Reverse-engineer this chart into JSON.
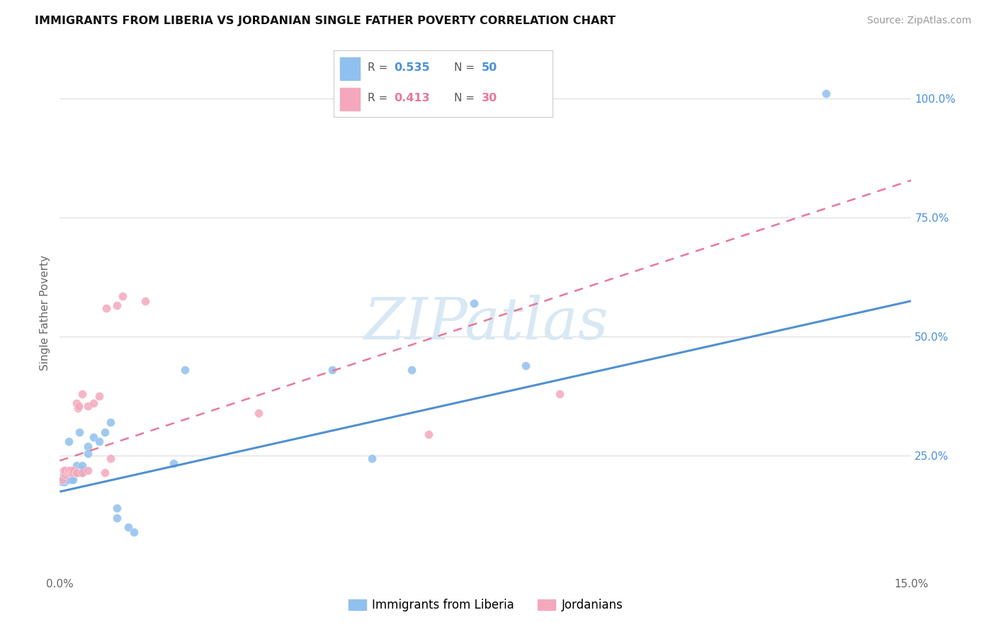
{
  "title": "IMMIGRANTS FROM LIBERIA VS JORDANIAN SINGLE FATHER POVERTY CORRELATION CHART",
  "source": "Source: ZipAtlas.com",
  "ylabel": "Single Father Poverty",
  "r1": "0.535",
  "n1": "50",
  "r2": "0.413",
  "n2": "30",
  "legend_label1": "Immigrants from Liberia",
  "legend_label2": "Jordanians",
  "color_blue": "#90C0EE",
  "color_pink": "#F5A8BC",
  "color_blue_line": "#5090D0",
  "color_pink_line": "#E87898",
  "color_blue_text": "#4A90D9",
  "color_pink_text": "#E87898",
  "color_grid": "#DDDDDD",
  "blue_line_x": [
    0.0,
    0.15
  ],
  "blue_line_y": [
    0.175,
    0.575
  ],
  "pink_line_x": [
    0.0,
    0.088
  ],
  "pink_line_y": [
    0.24,
    0.585
  ],
  "blue_x": [
    0.0004,
    0.0006,
    0.0007,
    0.0008,
    0.0009,
    0.001,
    0.001,
    0.001,
    0.0012,
    0.0013,
    0.0014,
    0.0015,
    0.0016,
    0.0017,
    0.0018,
    0.002,
    0.002,
    0.002,
    0.002,
    0.0022,
    0.0023,
    0.0025,
    0.0027,
    0.003,
    0.003,
    0.003,
    0.0032,
    0.0033,
    0.0035,
    0.004,
    0.004,
    0.004,
    0.005,
    0.005,
    0.006,
    0.007,
    0.008,
    0.009,
    0.01,
    0.01,
    0.012,
    0.013,
    0.02,
    0.022,
    0.048,
    0.055,
    0.062,
    0.073,
    0.082,
    0.135
  ],
  "blue_y": [
    0.195,
    0.2,
    0.21,
    0.195,
    0.205,
    0.2,
    0.215,
    0.22,
    0.2,
    0.215,
    0.215,
    0.2,
    0.28,
    0.22,
    0.215,
    0.215,
    0.215,
    0.22,
    0.2,
    0.22,
    0.2,
    0.22,
    0.215,
    0.215,
    0.22,
    0.23,
    0.215,
    0.215,
    0.3,
    0.215,
    0.22,
    0.23,
    0.27,
    0.255,
    0.29,
    0.28,
    0.3,
    0.32,
    0.12,
    0.14,
    0.1,
    0.09,
    0.235,
    0.43,
    0.43,
    0.245,
    0.43,
    0.57,
    0.44,
    1.01
  ],
  "pink_x": [
    0.0004,
    0.0007,
    0.001,
    0.001,
    0.0014,
    0.0016,
    0.002,
    0.002,
    0.0022,
    0.0025,
    0.003,
    0.003,
    0.003,
    0.0032,
    0.0033,
    0.004,
    0.004,
    0.005,
    0.005,
    0.006,
    0.007,
    0.008,
    0.0082,
    0.009,
    0.01,
    0.011,
    0.015,
    0.035,
    0.065,
    0.088
  ],
  "pink_y": [
    0.2,
    0.22,
    0.21,
    0.22,
    0.215,
    0.22,
    0.215,
    0.22,
    0.215,
    0.22,
    0.215,
    0.215,
    0.36,
    0.35,
    0.355,
    0.215,
    0.38,
    0.22,
    0.355,
    0.36,
    0.375,
    0.215,
    0.56,
    0.245,
    0.565,
    0.585,
    0.575,
    0.34,
    0.295,
    0.38
  ],
  "xlim": [
    0.0,
    0.15
  ],
  "ylim": [
    0.0,
    1.1
  ],
  "xticks": [
    0.0,
    0.05,
    0.1,
    0.15
  ],
  "xtick_labels": [
    "0.0%",
    "",
    "",
    "15.0%"
  ],
  "yticks_right": [
    0.25,
    0.5,
    0.75,
    1.0
  ],
  "ytick_labels_right": [
    "25.0%",
    "50.0%",
    "75.0%",
    "100.0%"
  ],
  "watermark": "ZIPatlas",
  "watermark_color": "#D8E8F4"
}
